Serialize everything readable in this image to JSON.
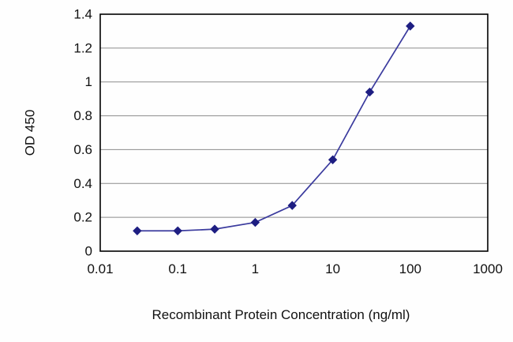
{
  "chart_data": {
    "type": "line",
    "title": "",
    "xlabel": "Recombinant Protein Concentration (ng/ml)",
    "ylabel": "OD 450",
    "x_scale": "log",
    "xlim": [
      0.01,
      1000
    ],
    "ylim": [
      0,
      1.4
    ],
    "x_ticks": [
      0.01,
      0.1,
      1,
      10,
      100,
      1000
    ],
    "y_ticks": [
      0,
      0.2,
      0.4,
      0.6,
      0.8,
      1,
      1.2,
      1.4
    ],
    "grid": "horizontal",
    "series": [
      {
        "name": "OD 450",
        "x": [
          0.03,
          0.1,
          0.3,
          1,
          3,
          10,
          30,
          100
        ],
        "values": [
          0.12,
          0.12,
          0.13,
          0.17,
          0.27,
          0.54,
          0.94,
          1.33
        ]
      }
    ],
    "line_color": "#3b3b9e",
    "marker": "diamond",
    "marker_color": "#1e1e82",
    "grid_color": "#8c8c8c",
    "border_color": "#000000"
  }
}
